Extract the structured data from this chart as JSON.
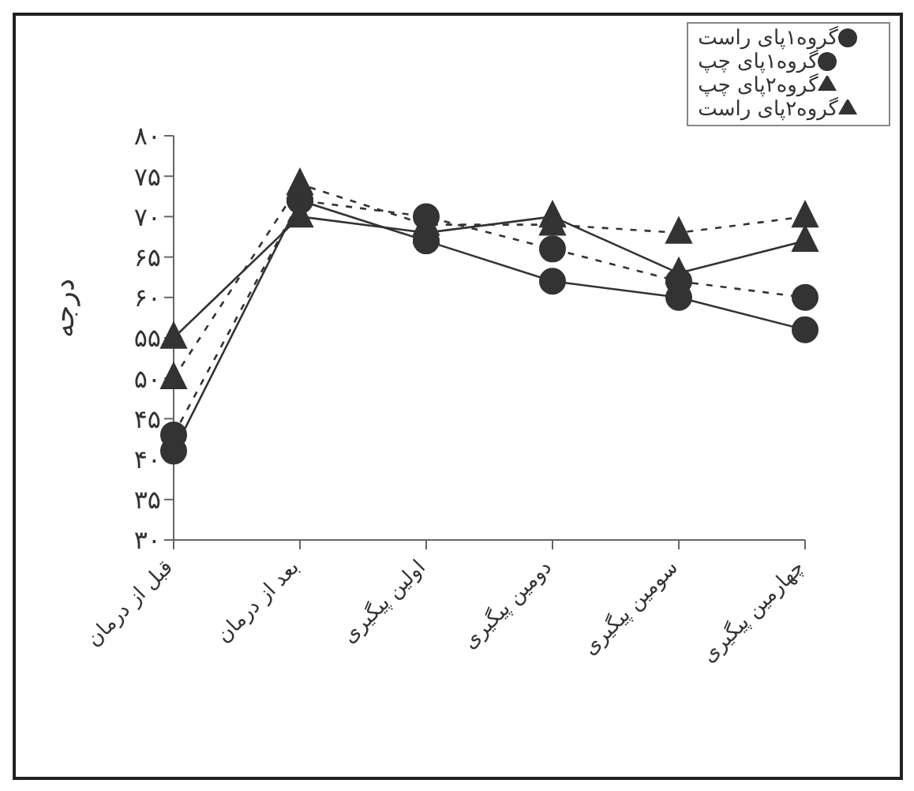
{
  "chart_data": {
    "type": "line",
    "ylabel": "درجه",
    "categories": [
      "قبل از درمان",
      "بعد از درمان",
      "اولین پیگیری",
      "دومین پیگیری",
      "سومین پیگیری",
      "چهارمین پیگیری"
    ],
    "series": [
      {
        "name": "گروه۱پای راست",
        "color": "#333333",
        "marker": "circle",
        "line_style": "dashed",
        "values": [
          43,
          72,
          70,
          66,
          62,
          60
        ]
      },
      {
        "name": "گروه۱پای چپ",
        "color": "#333333",
        "marker": "circle",
        "line_style": "solid",
        "values": [
          41,
          72,
          67,
          62,
          60,
          56
        ]
      },
      {
        "name": "گروه۲پای چپ",
        "color": "#333333",
        "marker": "triangle",
        "line_style": "solid",
        "values": [
          55,
          70,
          68,
          70,
          63,
          67
        ]
      },
      {
        "name": "گروه۲پای راست",
        "color": "#333333",
        "marker": "triangle",
        "line_style": "dashed",
        "values": [
          50,
          74,
          69,
          69,
          68,
          70
        ]
      }
    ],
    "ylim": [
      30,
      80
    ],
    "yticks": [
      {
        "value": 30,
        "label": "۳۰"
      },
      {
        "value": 35,
        "label": "۳۵"
      },
      {
        "value": 40,
        "label": "۴۰"
      },
      {
        "value": 45,
        "label": "۴۵"
      },
      {
        "value": 50,
        "label": "۵۰"
      },
      {
        "value": 55,
        "label": "۵۵"
      },
      {
        "value": 60,
        "label": "۶۰"
      },
      {
        "value": 65,
        "label": "۶۵"
      },
      {
        "value": 70,
        "label": "۷۰"
      },
      {
        "value": 75,
        "label": "۷۵"
      },
      {
        "value": 80,
        "label": "۸۰"
      }
    ],
    "grid": false,
    "legend": "top right"
  }
}
